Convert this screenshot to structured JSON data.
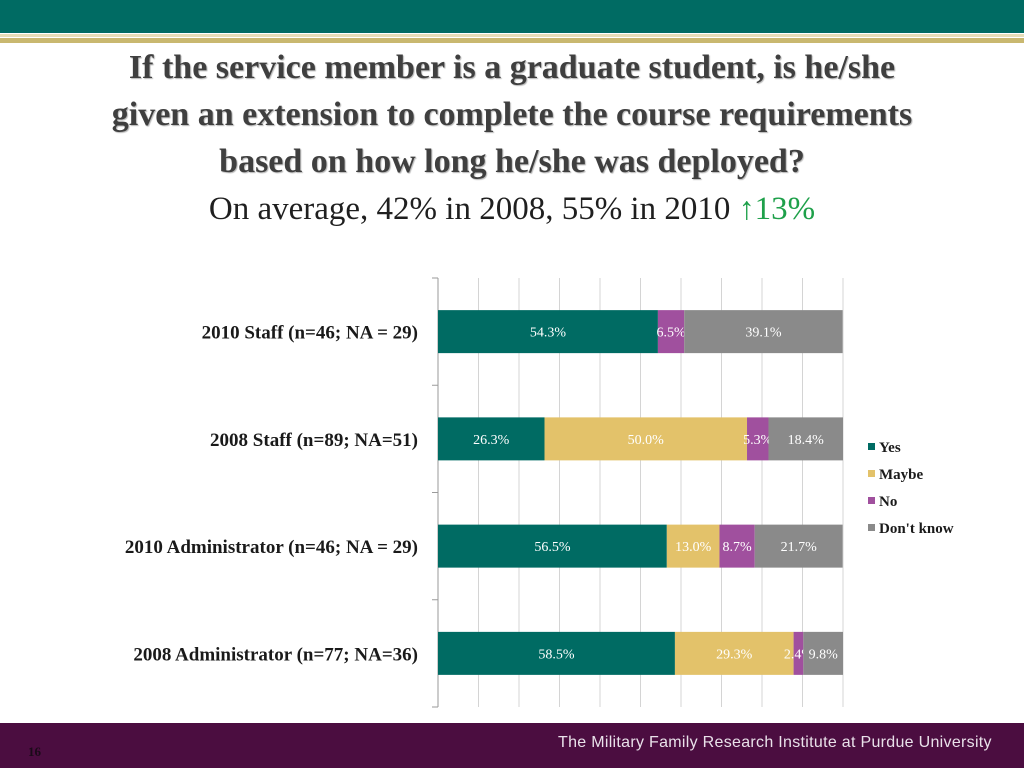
{
  "slide": {
    "title_lines": [
      "If the service member is a graduate student, is he/she",
      "given an extension to complete the course requirements",
      "based on how long he/she was deployed?"
    ],
    "subtitle_text": "On average, 42% in 2008, 55% in 2010 ",
    "subtitle_arrow": "↑",
    "subtitle_delta": "13%",
    "slide_number": "16",
    "footer": "The Military Family Research Institute at Purdue University"
  },
  "colors": {
    "Yes": "#006b63",
    "Maybe": "#e3c26a",
    "No": "#a0509e",
    "Don't know": "#8a8a8a",
    "accent_green": "#1ea04a"
  },
  "chart_data": {
    "type": "bar",
    "orientation": "horizontal",
    "stacked": true,
    "categories": [
      "2010 Staff (n=46; NA = 29)",
      "2008 Staff (n=89; NA=51)",
      "2010 Administrator (n=46; NA = 29)",
      "2008 Administrator (n=77; NA=36)"
    ],
    "series": [
      {
        "name": "Yes",
        "values": [
          54.3,
          26.3,
          56.5,
          58.5
        ],
        "labels": [
          "54.3%",
          "26.3%",
          "56.5%",
          "58.5%"
        ]
      },
      {
        "name": "Maybe",
        "values": [
          0,
          50.0,
          13.0,
          29.3
        ],
        "labels": [
          "",
          "50.0%",
          "13.0%",
          "29.3%"
        ]
      },
      {
        "name": "No",
        "values": [
          6.5,
          5.3,
          8.7,
          2.4
        ],
        "labels": [
          "6.5%",
          "5.3%",
          "8.7%",
          "2.4%"
        ]
      },
      {
        "name": "Don't know",
        "values": [
          39.1,
          18.4,
          21.7,
          9.8
        ],
        "labels": [
          "39.1%",
          "18.4%",
          "21.7%",
          "9.8%"
        ]
      }
    ],
    "xlim": [
      0,
      100
    ],
    "grid": true,
    "legend_position": "right"
  }
}
